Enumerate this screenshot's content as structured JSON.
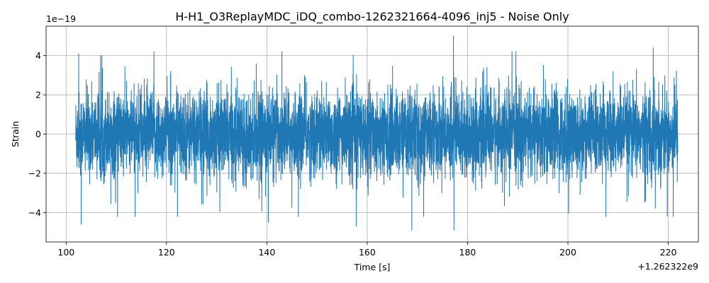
{
  "chart_data": {
    "type": "line",
    "title": "H-H1_O3ReplayMDC_iDQ_combo-1262321664-4096_inj5 - Noise Only",
    "xlabel": "Time [s]",
    "ylabel": "Strain",
    "x_offset_label": "+1.262322e9",
    "y_scale_label": "1e−19",
    "xlim": [
      96,
      226
    ],
    "ylim": [
      -5.5,
      5.5
    ],
    "x_ticks": [
      100,
      120,
      140,
      160,
      180,
      200,
      220
    ],
    "x_tick_labels": [
      "100",
      "120",
      "140",
      "160",
      "180",
      "200",
      "220"
    ],
    "y_ticks": [
      -4,
      -2,
      0,
      2,
      4
    ],
    "y_tick_labels": [
      "−4",
      "−2",
      "0",
      "2",
      "4"
    ],
    "grid": true,
    "series": [
      {
        "color": "#1f77b4",
        "x_range": [
          101.9,
          221.9
        ],
        "values_shown": "dense noise, mostly within ±2, peaks near ±4.5 to ±5",
        "extremes": [
          {
            "x": 102.5,
            "y": 4.1
          },
          {
            "x": 103.0,
            "y": -4.6
          },
          {
            "x": 117.5,
            "y": 4.2
          },
          {
            "x": 140.3,
            "y": -4.5
          },
          {
            "x": 157.8,
            "y": -4.7
          },
          {
            "x": 168.9,
            "y": -4.9
          },
          {
            "x": 177.2,
            "y": 5.0
          },
          {
            "x": 177.3,
            "y": -4.9
          },
          {
            "x": 217.0,
            "y": 4.4
          },
          {
            "x": 221.0,
            "y": -4.2
          }
        ]
      }
    ]
  }
}
